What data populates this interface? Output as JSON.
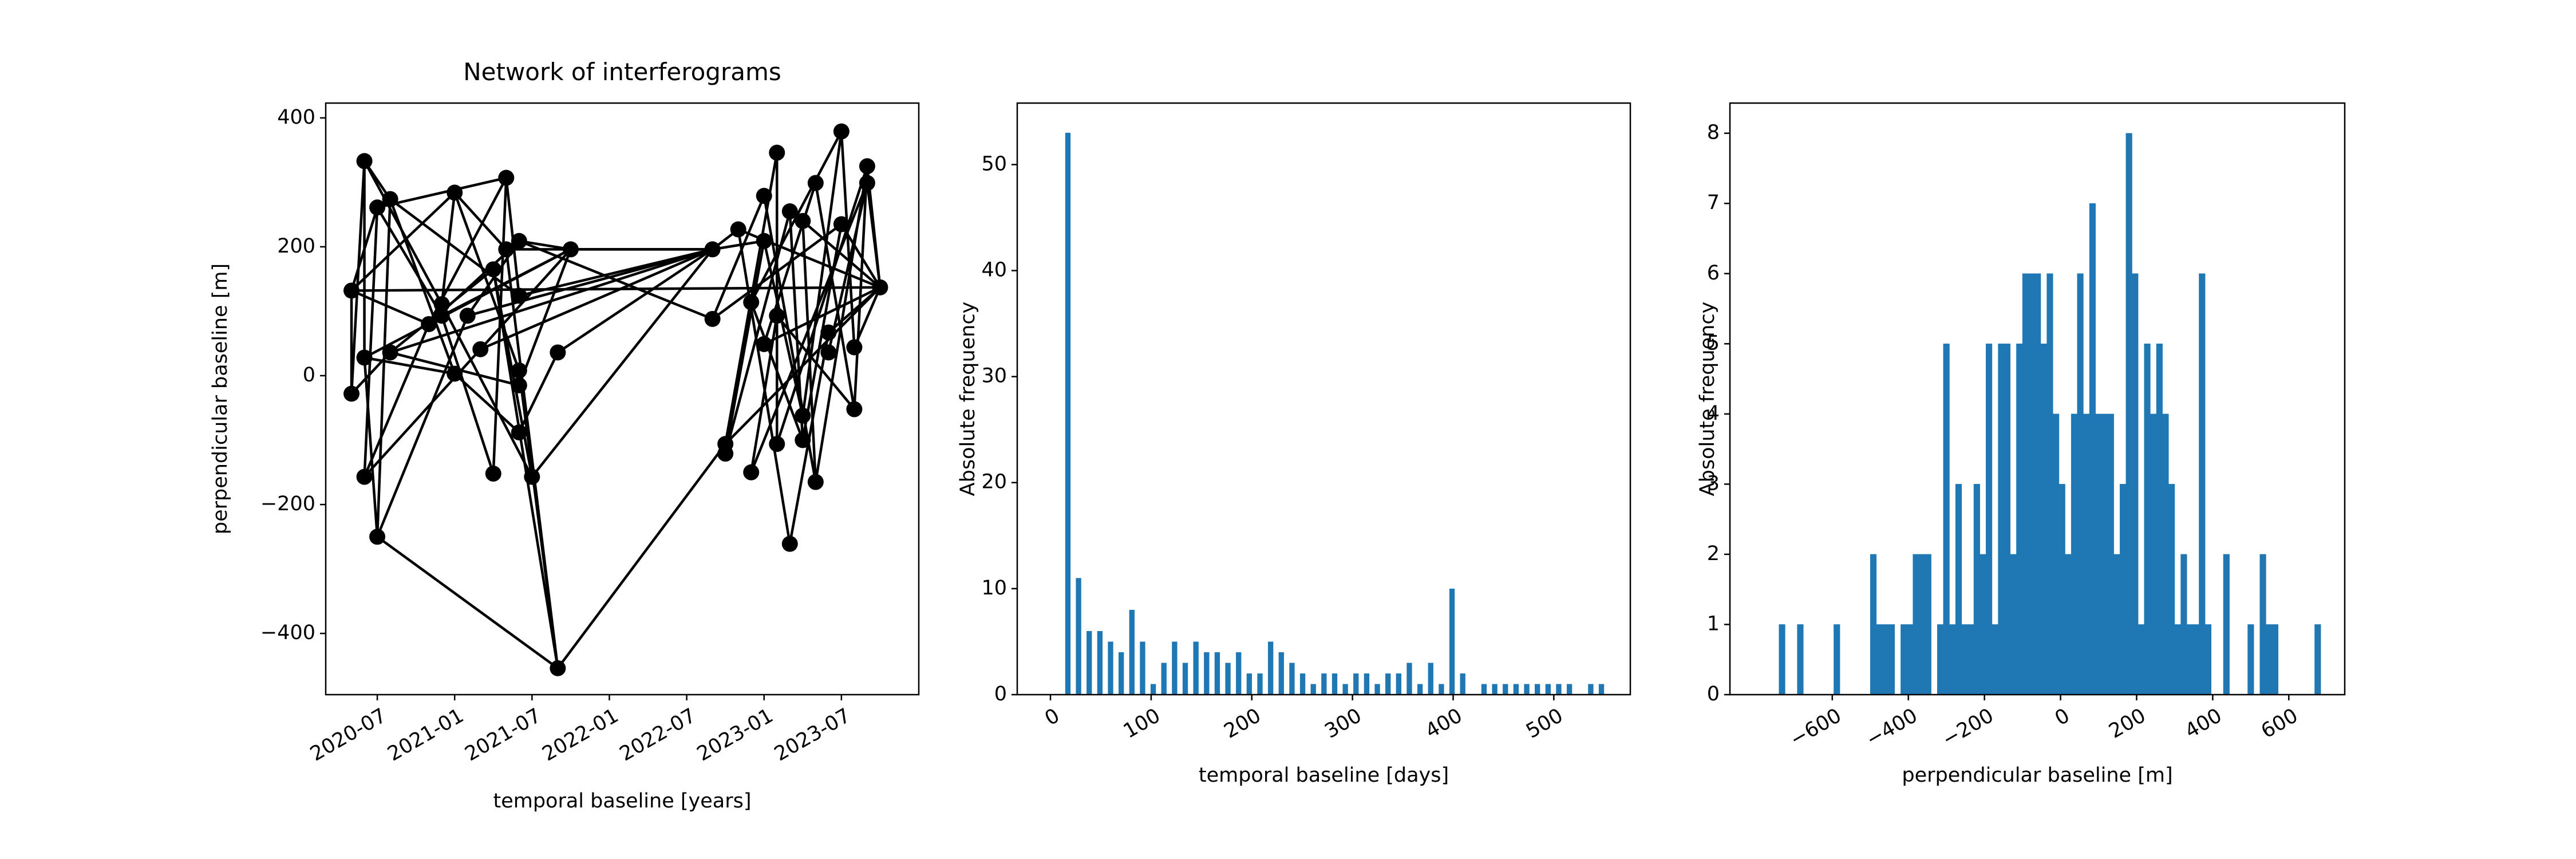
{
  "chart_data": [
    {
      "type": "network",
      "title": "Network of interferograms",
      "x_label": "temporal baseline [years]",
      "y_label": "perpendicular baseline [m]",
      "color": "#000000",
      "x": [
        "2020-05",
        "2020-05",
        "2020-06",
        "2020-06",
        "2020-06",
        "2020-07",
        "2020-07",
        "2020-08",
        "2020-08",
        "2020-11",
        "2020-12",
        "2020-12",
        "2021-01",
        "2021-01",
        "2021-02",
        "2021-03",
        "2021-04",
        "2021-04",
        "2021-05",
        "2021-05",
        "2021-06",
        "2021-06",
        "2021-06",
        "2021-06",
        "2021-06",
        "2021-07",
        "2021-09",
        "2021-09",
        "2021-10",
        "2022-09",
        "2022-09",
        "2022-10",
        "2022-10",
        "2022-11",
        "2022-12",
        "2022-12",
        "2023-01",
        "2023-01",
        "2023-01",
        "2023-02",
        "2023-02",
        "2023-02",
        "2023-03",
        "2023-03",
        "2023-04",
        "2023-04",
        "2023-04",
        "2023-05",
        "2023-05",
        "2023-06",
        "2023-06",
        "2023-07",
        "2023-07",
        "2023-08",
        "2023-08",
        "2023-09",
        "2023-09",
        "2023-10"
      ],
      "values": [
        -28,
        132,
        28,
        -157,
        333,
        -250,
        261,
        274,
        36,
        80,
        93,
        111,
        284,
        3,
        93,
        41,
        165,
        -152,
        307,
        196,
        -15,
        -88,
        124,
        8,
        209,
        -157,
        -454,
        36,
        196,
        196,
        88,
        -106,
        -121,
        227,
        114,
        -150,
        209,
        279,
        49,
        93,
        346,
        -106,
        -261,
        255,
        -100,
        240,
        -62,
        -165,
        299,
        36,
        67,
        379,
        235,
        -52,
        44,
        299,
        325,
        137
      ],
      "edges": [
        [
          0,
          1
        ],
        [
          0,
          4
        ],
        [
          0,
          8
        ],
        [
          1,
          6
        ],
        [
          1,
          9
        ],
        [
          1,
          12
        ],
        [
          2,
          4
        ],
        [
          2,
          5
        ],
        [
          2,
          13
        ],
        [
          3,
          6
        ],
        [
          3,
          9
        ],
        [
          3,
          15
        ],
        [
          4,
          7
        ],
        [
          4,
          11
        ],
        [
          5,
          7
        ],
        [
          5,
          14
        ],
        [
          5,
          26
        ],
        [
          6,
          10
        ],
        [
          6,
          18
        ],
        [
          7,
          13
        ],
        [
          7,
          22
        ],
        [
          8,
          16
        ],
        [
          8,
          20
        ],
        [
          9,
          18
        ],
        [
          9,
          24
        ],
        [
          10,
          17
        ],
        [
          10,
          28
        ],
        [
          11,
          12
        ],
        [
          11,
          25
        ],
        [
          12,
          19
        ],
        [
          12,
          23
        ],
        [
          13,
          21
        ],
        [
          14,
          24
        ],
        [
          14,
          29
        ],
        [
          15,
          28
        ],
        [
          15,
          29
        ],
        [
          16,
          25
        ],
        [
          16,
          26
        ],
        [
          17,
          18
        ],
        [
          18,
          22
        ],
        [
          19,
          26
        ],
        [
          19,
          29
        ],
        [
          20,
          28
        ],
        [
          21,
          27
        ],
        [
          22,
          29
        ],
        [
          23,
          26
        ],
        [
          24,
          28
        ],
        [
          24,
          30
        ],
        [
          25,
          29
        ],
        [
          26,
          31
        ],
        [
          27,
          29
        ],
        [
          28,
          29
        ],
        [
          29,
          33
        ],
        [
          29,
          36
        ],
        [
          30,
          37
        ],
        [
          30,
          52
        ],
        [
          31,
          40
        ],
        [
          31,
          57
        ],
        [
          32,
          43
        ],
        [
          32,
          36
        ],
        [
          33,
          42
        ],
        [
          33,
          57
        ],
        [
          34,
          44
        ],
        [
          34,
          51
        ],
        [
          35,
          39
        ],
        [
          35,
          55
        ],
        [
          36,
          46
        ],
        [
          37,
          47
        ],
        [
          38,
          48
        ],
        [
          38,
          57
        ],
        [
          39,
          53
        ],
        [
          40,
          41
        ],
        [
          41,
          56
        ],
        [
          42,
          50
        ],
        [
          43,
          44
        ],
        [
          44,
          52
        ],
        [
          45,
          47
        ],
        [
          45,
          57
        ],
        [
          46,
          51
        ],
        [
          47,
          56
        ],
        [
          48,
          53
        ],
        [
          49,
          55
        ],
        [
          50,
          57
        ],
        [
          51,
          54
        ],
        [
          52,
          57
        ],
        [
          53,
          56
        ],
        [
          54,
          57
        ],
        [
          55,
          57
        ],
        [
          56,
          57
        ],
        [
          1,
          57
        ],
        [
          8,
          29
        ],
        [
          2,
          28
        ]
      ],
      "xlim": [
        "2020-03",
        "2024-01"
      ],
      "xticks": [
        "2020-07",
        "2021-01",
        "2021-07",
        "2022-01",
        "2022-07",
        "2023-01",
        "2023-07"
      ],
      "ylim": [
        -495,
        423
      ],
      "yticks": [
        {
          "value": -400,
          "label": "−400"
        },
        {
          "value": -200,
          "label": "−200"
        },
        0,
        200,
        400
      ]
    },
    {
      "type": "histogram",
      "x_label": "temporal baseline [days]",
      "y_label": "Absolute frequency",
      "color": "#1f77b4",
      "bins": [
        12,
        22.6,
        33.2,
        43.8,
        54.4,
        65,
        75.6,
        86.2,
        96.8,
        107.4,
        118,
        128.6,
        139.2,
        149.8,
        160.4,
        171,
        181.6,
        192.2,
        202.8,
        213.4,
        224,
        234.6,
        245.2,
        255.8,
        266.4,
        277,
        287.6,
        298.2,
        308.8,
        319.4,
        330,
        340.6,
        351.2,
        361.8,
        372.4,
        383,
        393.6,
        404.2,
        414.8,
        425.4,
        436,
        446.6,
        457.2,
        467.8,
        478.4,
        489,
        499.6,
        510.2,
        520.8,
        531.4,
        542,
        552.6
      ],
      "values": [
        53,
        11,
        6,
        6,
        5,
        4,
        8,
        5,
        1,
        3,
        5,
        3,
        5,
        4,
        4,
        3,
        4,
        2,
        2,
        5,
        4,
        3,
        2,
        1,
        2,
        2,
        1,
        2,
        2,
        1,
        2,
        2,
        3,
        1,
        3,
        1,
        10,
        2,
        0,
        1,
        1,
        1,
        1,
        1,
        1,
        1,
        1,
        1,
        0,
        1,
        1
      ],
      "xlim": [
        -33,
        576
      ],
      "xticks": [
        0,
        100,
        200,
        300,
        400,
        500
      ],
      "ylim": [
        0,
        55.8
      ],
      "yticks": [
        0,
        10,
        20,
        30,
        40,
        50
      ]
    },
    {
      "type": "histogram",
      "x_label": "perpendicular baseline [m]",
      "y_label": "Absolute frequency",
      "color": "#1f77b4",
      "bins": [
        -740,
        -724,
        -708,
        -692,
        -676,
        -660,
        -644,
        -628,
        -612,
        -596,
        -580,
        -564,
        -548,
        -532,
        -516,
        -500,
        -484,
        -468,
        -452,
        -436,
        -420,
        -404,
        -388,
        -372,
        -356,
        -340,
        -324,
        -308,
        -292,
        -276,
        -260,
        -244,
        -228,
        -212,
        -196,
        -180,
        -164,
        -148,
        -132,
        -116,
        -100,
        -84,
        -68,
        -52,
        -36,
        -20,
        -4,
        12,
        28,
        44,
        60,
        76,
        92,
        108,
        124,
        140,
        156,
        172,
        188,
        204,
        220,
        236,
        252,
        268,
        284,
        300,
        316,
        332,
        348,
        364,
        380,
        396,
        412,
        428,
        444,
        460,
        476,
        492,
        508,
        524,
        540,
        556,
        572,
        588,
        604,
        620,
        636,
        652,
        668,
        684
      ],
      "values": [
        1,
        0,
        0,
        1,
        0,
        0,
        0,
        0,
        0,
        1,
        0,
        0,
        0,
        0,
        0,
        2,
        1,
        1,
        1,
        0,
        1,
        1,
        2,
        2,
        2,
        0,
        1,
        5,
        1,
        3,
        1,
        1,
        3,
        2,
        5,
        1,
        5,
        5,
        2,
        5,
        6,
        6,
        6,
        5,
        6,
        4,
        3,
        2,
        4,
        6,
        4,
        7,
        4,
        4,
        4,
        2,
        3,
        8,
        6,
        1,
        5,
        4,
        5,
        4,
        3,
        1,
        2,
        1,
        1,
        6,
        1,
        0,
        0,
        2,
        0,
        0,
        0,
        1,
        0,
        2,
        1,
        1,
        0,
        0,
        0,
        0,
        0,
        0,
        1
      ],
      "xlim": [
        -869,
        747
      ],
      "xticks": [
        {
          "value": -600,
          "label": "−600"
        },
        {
          "value": -400,
          "label": "−400"
        },
        {
          "value": -200,
          "label": "−200"
        },
        0,
        200,
        400,
        600
      ],
      "ylim": [
        0,
        8.43
      ],
      "yticks": [
        0,
        1,
        2,
        3,
        4,
        5,
        6,
        7,
        8
      ]
    }
  ]
}
